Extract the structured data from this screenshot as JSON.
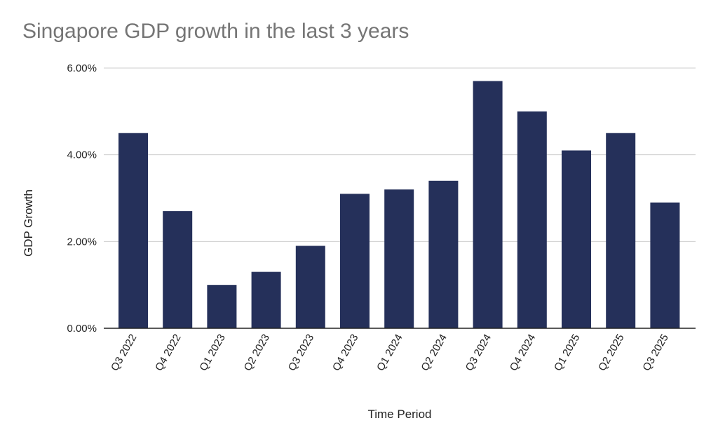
{
  "chart_data": {
    "type": "bar",
    "title": "Singapore GDP growth in the last 3 years",
    "xlabel": "Time Period",
    "ylabel": "GDP Growth",
    "categories": [
      "Q3 2022",
      "Q4 2022",
      "Q1 2023",
      "Q2 2023",
      "Q3 2023",
      "Q4 2023",
      "Q1 2024",
      "Q2 2024",
      "Q3 2024",
      "Q4 2024",
      "Q1 2025",
      "Q2 2025",
      "Q3 2025"
    ],
    "values": [
      4.5,
      2.7,
      1.0,
      1.3,
      1.9,
      3.1,
      3.2,
      3.4,
      5.7,
      5.0,
      4.1,
      4.5,
      2.9
    ],
    "ylim": [
      0,
      6
    ],
    "yticks": [
      0,
      2,
      4,
      6
    ],
    "ytick_labels": [
      "0.00%",
      "2.00%",
      "4.00%",
      "6.00%"
    ],
    "grid": true,
    "legend": "none",
    "bar_color": "#25305a"
  }
}
